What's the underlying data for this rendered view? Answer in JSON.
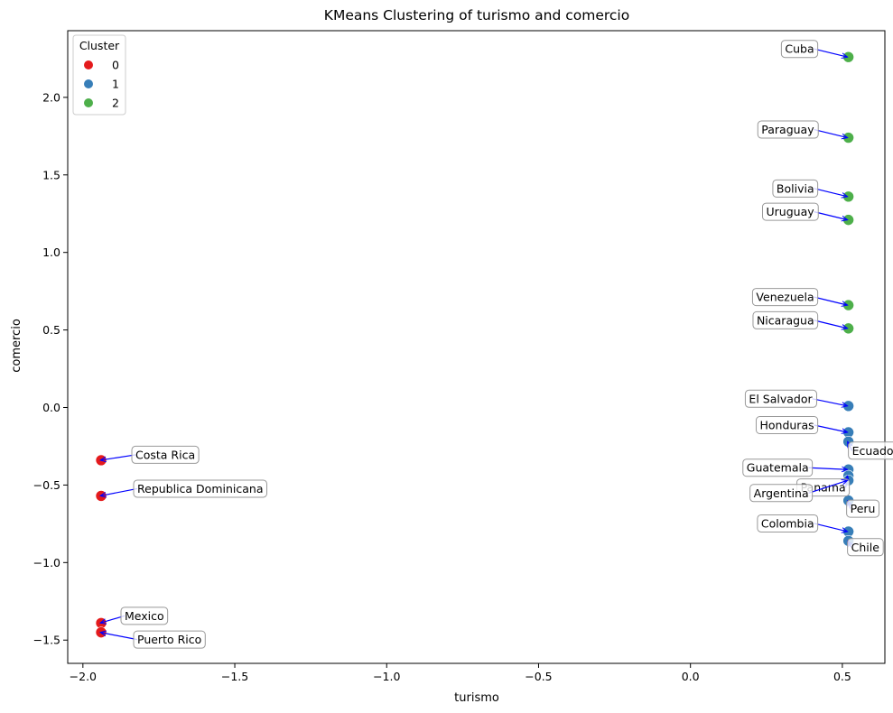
{
  "chart_data": {
    "type": "scatter",
    "title": "KMeans Clustering of turismo and comercio",
    "xlabel": "turismo",
    "ylabel": "comercio",
    "xlim": [
      -2.05,
      0.64
    ],
    "ylim": [
      -1.65,
      2.43
    ],
    "xticks": [
      -2.0,
      -1.5,
      -1.0,
      -0.5,
      0.0,
      0.5
    ],
    "xtick_labels": [
      "−2.0",
      "−1.5",
      "−1.0",
      "−0.5",
      "0.0",
      "0.5"
    ],
    "yticks": [
      -1.5,
      -1.0,
      -0.5,
      0.0,
      0.5,
      1.0,
      1.5,
      2.0
    ],
    "ytick_labels": [
      "−1.5",
      "−1.0",
      "−0.5",
      "0.0",
      "0.5",
      "1.0",
      "1.5",
      "2.0"
    ],
    "grid": false,
    "legend": {
      "title": "Cluster",
      "placement": "top-left",
      "entries": [
        {
          "label": "0",
          "color": "#e41a1c"
        },
        {
          "label": "1",
          "color": "#377eb8"
        },
        {
          "label": "2",
          "color": "#4daf4a"
        }
      ]
    },
    "arrow_color": "#0000ff",
    "points": [
      {
        "label": "Cuba",
        "x": 0.52,
        "y": 2.26,
        "cluster": 2
      },
      {
        "label": "Paraguay",
        "x": 0.52,
        "y": 1.74,
        "cluster": 2
      },
      {
        "label": "Bolivia",
        "x": 0.52,
        "y": 1.36,
        "cluster": 2
      },
      {
        "label": "Uruguay",
        "x": 0.52,
        "y": 1.21,
        "cluster": 2
      },
      {
        "label": "Venezuela",
        "x": 0.52,
        "y": 0.66,
        "cluster": 2
      },
      {
        "label": "Nicaragua",
        "x": 0.52,
        "y": 0.51,
        "cluster": 2
      },
      {
        "label": "El Salvador",
        "x": 0.52,
        "y": 0.01,
        "cluster": 1
      },
      {
        "label": "Honduras",
        "x": 0.52,
        "y": -0.16,
        "cluster": 1
      },
      {
        "label": "Ecuador",
        "x": 0.52,
        "y": -0.22,
        "cluster": 1
      },
      {
        "label": "Guatemala",
        "x": 0.52,
        "y": -0.4,
        "cluster": 1
      },
      {
        "label": "Panama",
        "x": 0.52,
        "y": -0.44,
        "cluster": 1
      },
      {
        "label": "Argentina",
        "x": 0.52,
        "y": -0.47,
        "cluster": 1
      },
      {
        "label": "Peru",
        "x": 0.52,
        "y": -0.6,
        "cluster": 1
      },
      {
        "label": "Colombia",
        "x": 0.52,
        "y": -0.8,
        "cluster": 1
      },
      {
        "label": "Chile",
        "x": 0.52,
        "y": -0.86,
        "cluster": 1
      },
      {
        "label": "Costa Rica",
        "x": -1.94,
        "y": -0.34,
        "cluster": 0
      },
      {
        "label": "Republica Dominicana",
        "x": -1.94,
        "y": -0.57,
        "cluster": 0
      },
      {
        "label": "Mexico",
        "x": -1.94,
        "y": -1.39,
        "cluster": 0
      },
      {
        "label": "Puerto Rico",
        "x": -1.94,
        "y": -1.45,
        "cluster": 0
      }
    ]
  }
}
